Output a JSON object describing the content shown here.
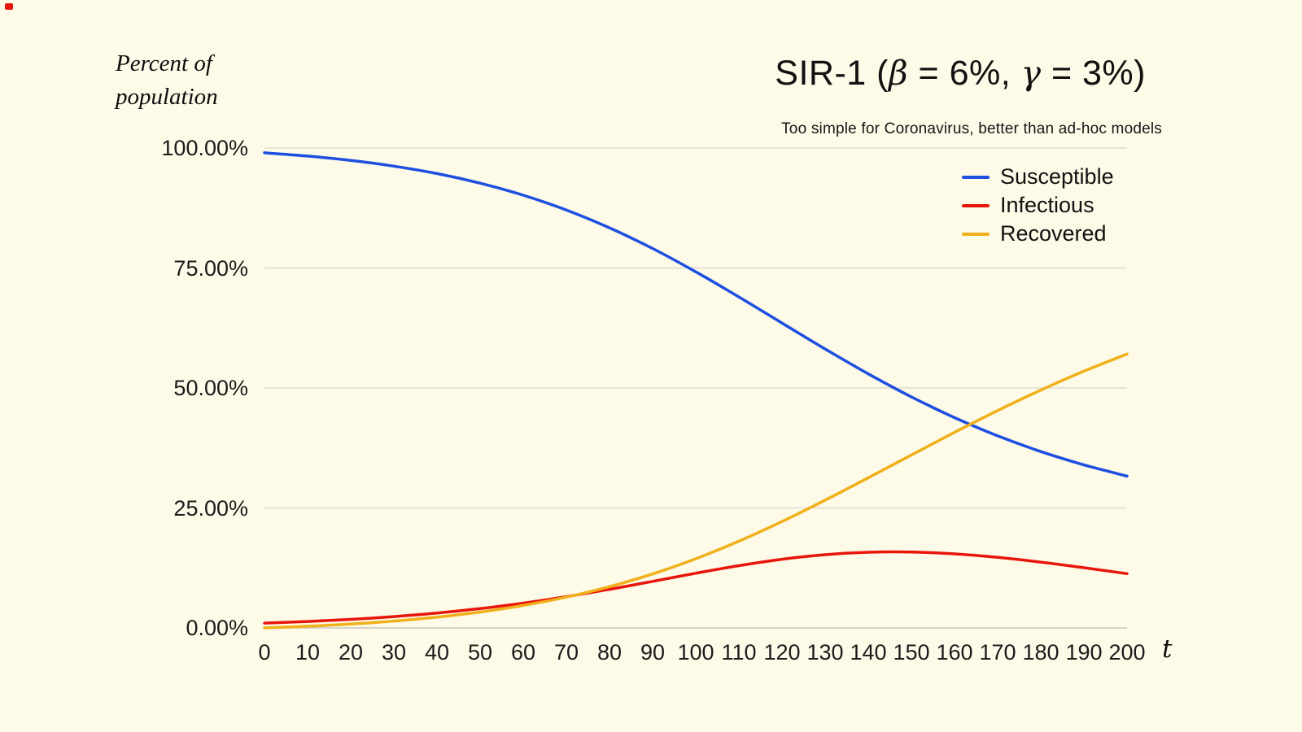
{
  "colors": {
    "background": "#fdfae7",
    "susceptible": "#1d4fe1",
    "infectious": "#e8150b",
    "recovered": "#f0b01a",
    "gridline": "#dddcd3"
  },
  "title": {
    "text": "SIR-1 (β = 6%, γ = 3%)",
    "parts": [
      "SIR-1 (",
      "β",
      " = 6%, ",
      "γ",
      " = 3%)"
    ]
  },
  "subtitle": "Too simple for Coronavirus, better than ad-hoc models",
  "axis": {
    "y_title_line1": "Percent of",
    "y_title_line2": "population",
    "x_title": "t"
  },
  "legend": [
    {
      "label": "Susceptible",
      "color": "#1d4fe1"
    },
    {
      "label": "Infectious",
      "color": "#e8150b"
    },
    {
      "label": "Recovered",
      "color": "#f0b01a"
    }
  ],
  "chart_data": {
    "type": "line",
    "title": "SIR-1 (β = 6%, γ = 3%)",
    "subtitle": "Too simple for Coronavirus, better than ad-hoc models",
    "xlabel": "t",
    "ylabel": "Percent of population",
    "params": {
      "beta_pct": 6,
      "gamma_pct": 3
    },
    "xlim": [
      0,
      200
    ],
    "ylim": [
      0,
      100
    ],
    "grid": "horizontal",
    "legend_position": "top-right",
    "x": [
      0,
      10,
      20,
      30,
      40,
      50,
      60,
      70,
      80,
      90,
      100,
      110,
      120,
      130,
      140,
      150,
      160,
      170,
      180,
      190,
      200
    ],
    "yticks": [
      0,
      25,
      50,
      75,
      100
    ],
    "ytick_labels": [
      "0.00%",
      "25.00%",
      "50.00%",
      "75.00%",
      "100.00%"
    ],
    "series": [
      {
        "name": "Susceptible",
        "color": "#1d4fe1",
        "values": [
          99.0,
          98.32,
          97.41,
          96.22,
          94.67,
          92.68,
          90.17,
          87.08,
          83.37,
          79.06,
          74.21,
          68.97,
          63.53,
          58.12,
          52.94,
          48.14,
          43.82,
          40.02,
          36.75,
          33.97,
          31.62
        ]
      },
      {
        "name": "Infectious",
        "color": "#e8150b",
        "values": [
          1.0,
          1.34,
          1.78,
          2.36,
          3.1,
          4.02,
          5.16,
          6.51,
          8.04,
          9.7,
          11.39,
          12.97,
          14.3,
          15.26,
          15.77,
          15.82,
          15.43,
          14.7,
          13.7,
          12.54,
          11.31
        ]
      },
      {
        "name": "Recovered",
        "color": "#f0b01a",
        "values": [
          0.0,
          0.35,
          0.81,
          1.42,
          2.24,
          3.3,
          4.67,
          6.41,
          8.59,
          11.24,
          14.41,
          18.07,
          22.17,
          26.62,
          31.29,
          36.04,
          40.75,
          45.28,
          49.55,
          53.49,
          57.07
        ]
      }
    ]
  }
}
